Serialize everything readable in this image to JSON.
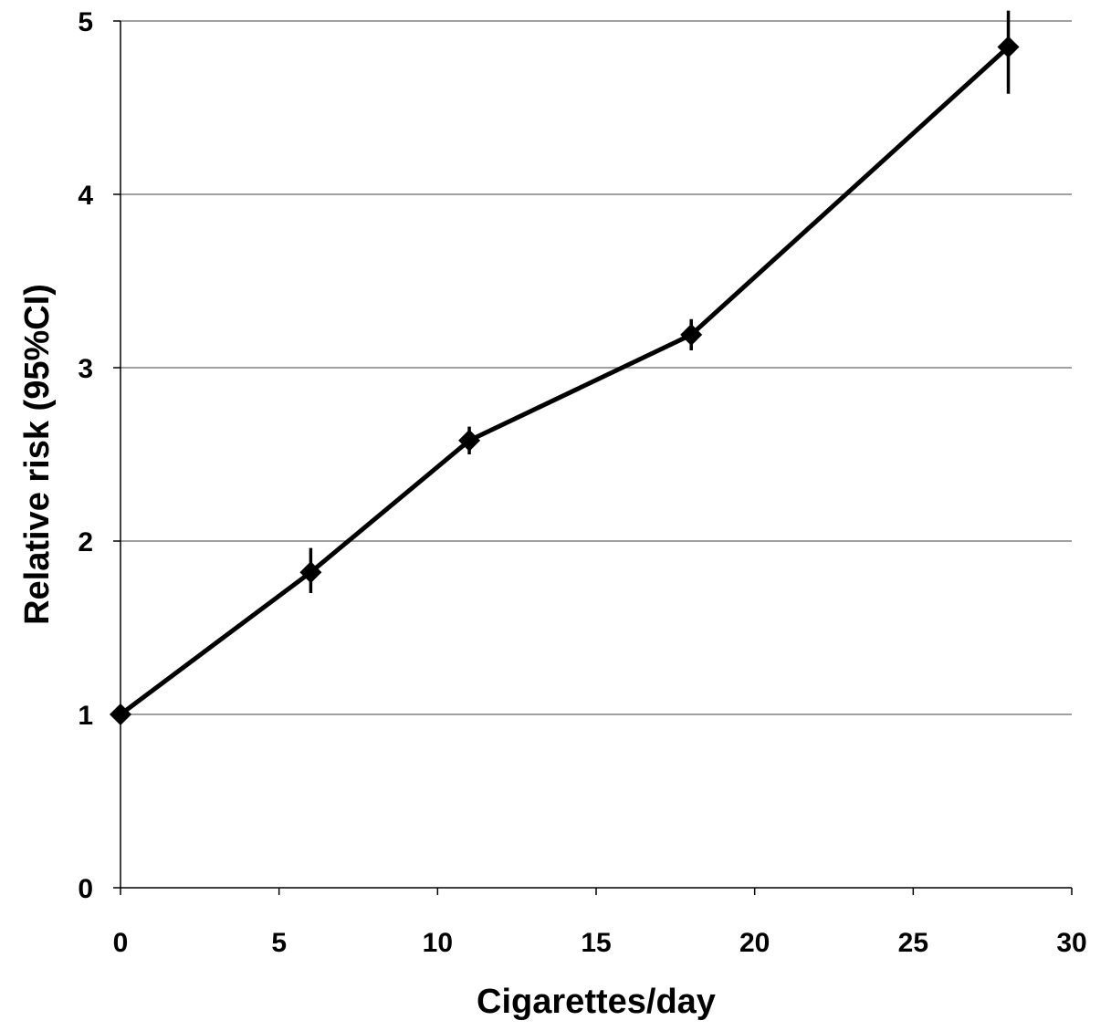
{
  "chart_data": {
    "type": "line",
    "title": "",
    "xlabel": "Cigarettes/day",
    "ylabel": "Relative risk (95%CI)",
    "xlim": [
      0,
      30
    ],
    "ylim": [
      0,
      5
    ],
    "x_ticks": [
      0,
      5,
      10,
      15,
      20,
      25,
      30
    ],
    "y_ticks": [
      0,
      1,
      2,
      3,
      4,
      5
    ],
    "grid": "horizontal",
    "legend": "none",
    "colors": {
      "line": "#000000",
      "marker": "#000000",
      "grid": "#808080"
    },
    "series": [
      {
        "x": [
          0,
          6,
          11,
          18,
          28
        ],
        "y": [
          1.0,
          1.82,
          2.58,
          3.19,
          4.85
        ],
        "ci_low": [
          1.0,
          1.7,
          2.5,
          3.1,
          4.58
        ],
        "ci_high": [
          1.0,
          1.96,
          2.66,
          3.28,
          5.06
        ],
        "marker": "diamond"
      }
    ]
  }
}
